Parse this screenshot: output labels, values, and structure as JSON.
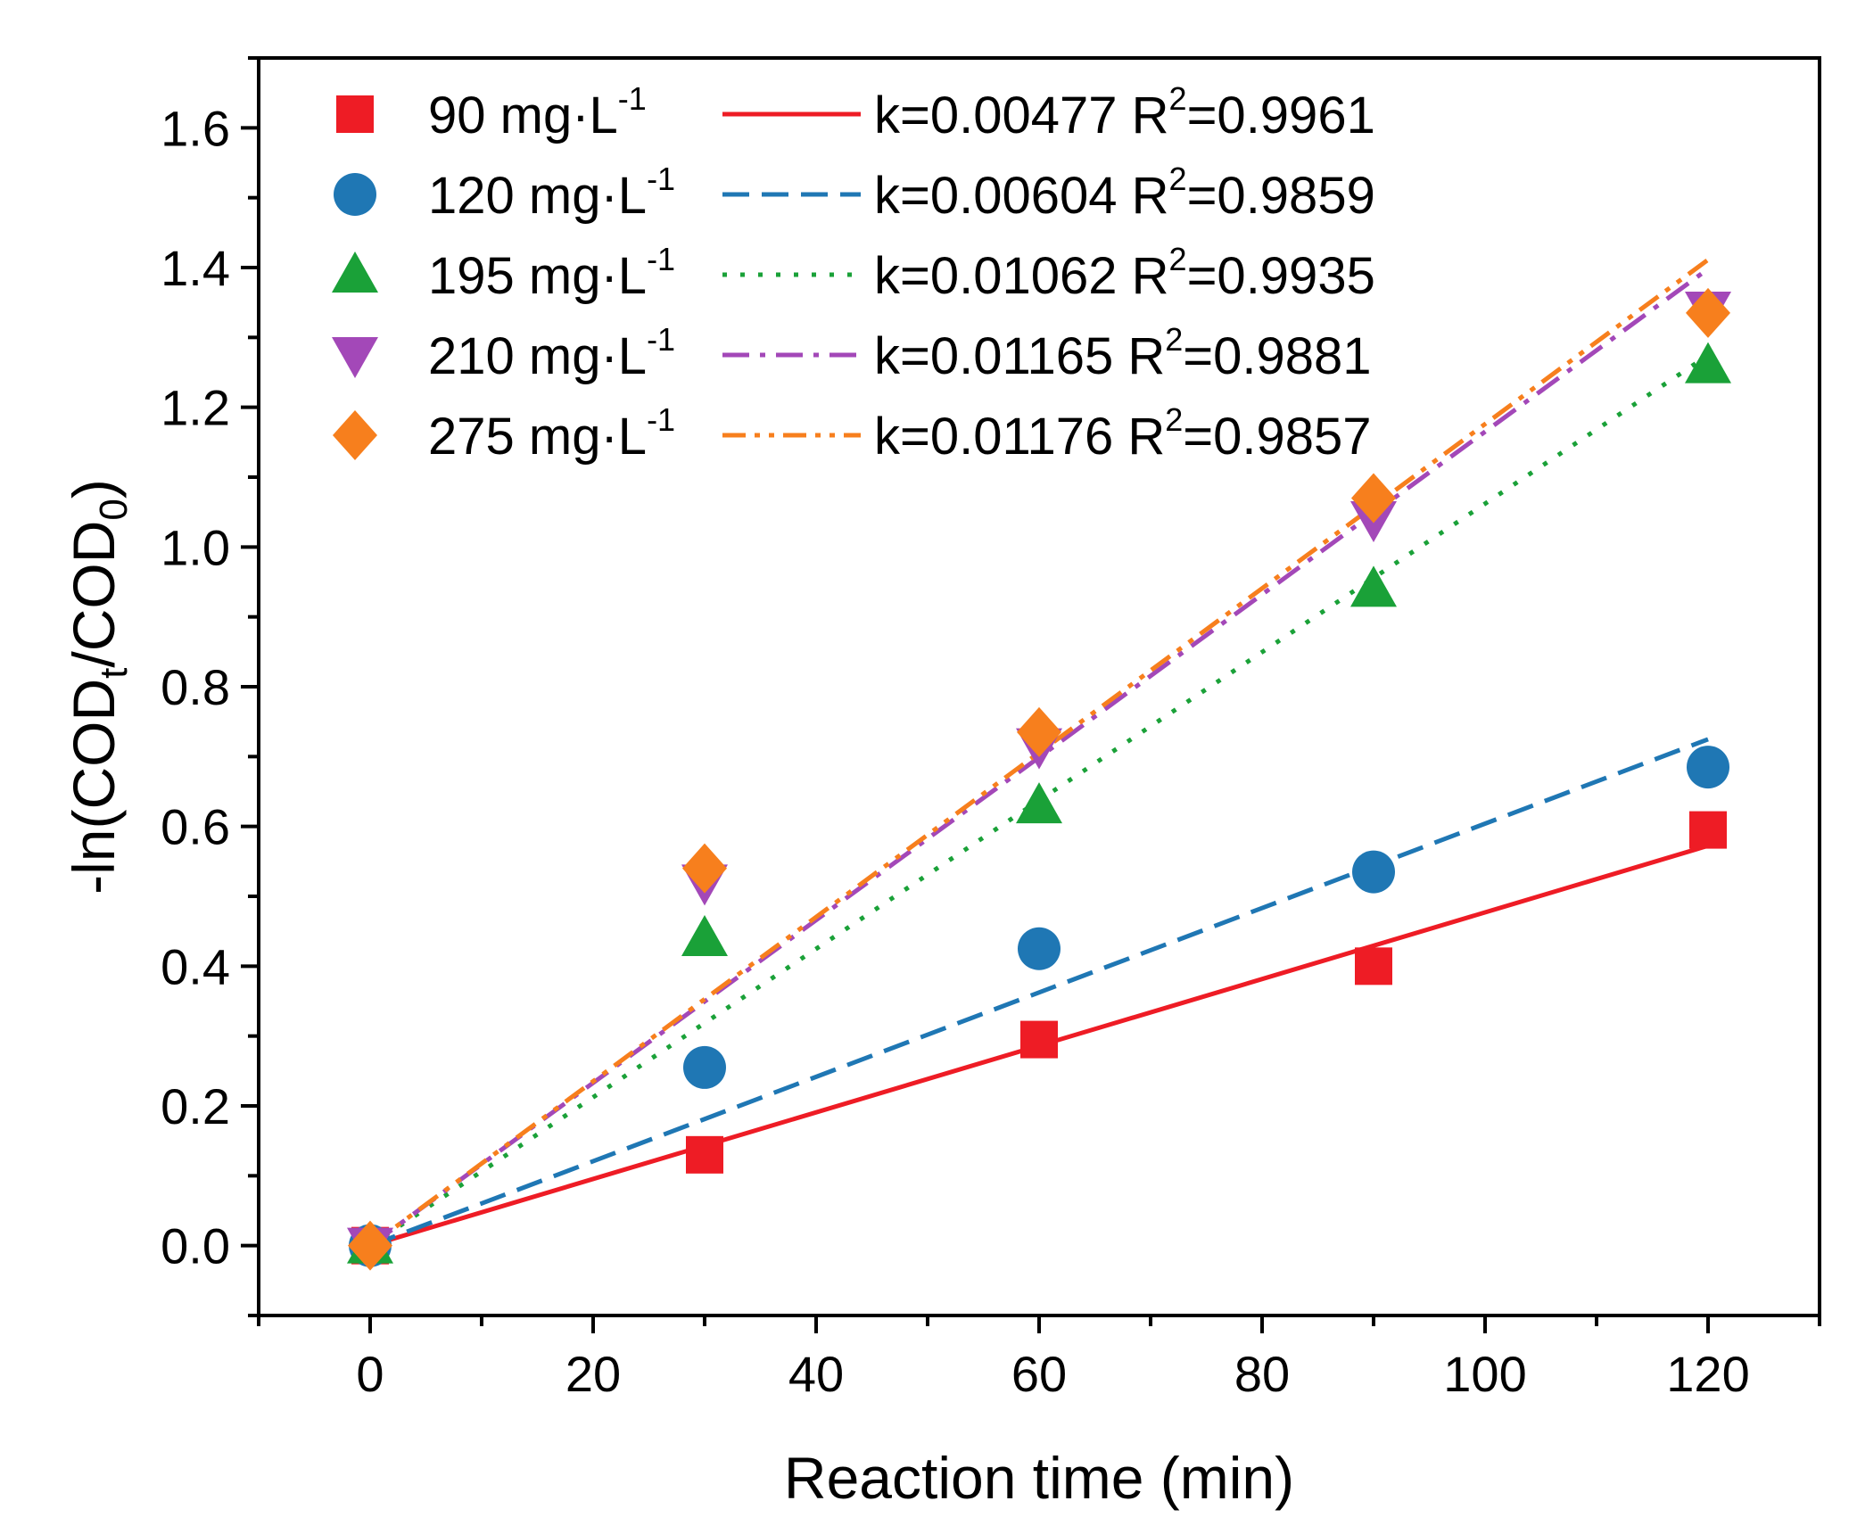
{
  "chart_data": {
    "type": "scatter",
    "title": "",
    "xlabel": "Reaction time (min)",
    "ylabel": {
      "prefix": "-ln(COD",
      "sub1": "t",
      "middle": "/COD",
      "sub2": "0",
      "suffix": ")"
    },
    "xlim": [
      -10,
      130
    ],
    "ylim": [
      -0.1,
      1.7
    ],
    "xticks": [
      0,
      20,
      40,
      60,
      80,
      100,
      120
    ],
    "xtick_labels": [
      "0",
      "20",
      "40",
      "60",
      "80",
      "100",
      "120"
    ],
    "yticks": [
      0.0,
      0.2,
      0.4,
      0.6,
      0.8,
      1.0,
      1.2,
      1.4,
      1.6
    ],
    "ytick_labels": [
      "0.0",
      "0.2",
      "0.4",
      "0.6",
      "0.8",
      "1.0",
      "1.2",
      "1.4",
      "1.6"
    ],
    "grid": false,
    "legend_position": "top-left",
    "legend_unit": "mg·L",
    "legend_unit_exp": "-1",
    "x": [
      0,
      30,
      60,
      90,
      120
    ],
    "series": [
      {
        "name": "90",
        "marker": "square",
        "color": "#ee1c25",
        "line_style": "solid",
        "values": [
          0.0,
          0.13,
          0.295,
          0.4,
          0.595
        ],
        "k": 0.00477,
        "fit_label": "k=0.00477 R",
        "r2": "=0.9961"
      },
      {
        "name": "120",
        "marker": "circle",
        "color": "#1f77b4",
        "line_style": "dash",
        "values": [
          0.0,
          0.255,
          0.425,
          0.535,
          0.685
        ],
        "k": 0.00604,
        "fit_label": "k=0.00604 R",
        "r2": "=0.9859"
      },
      {
        "name": "195",
        "marker": "triangle-up",
        "color": "#1aa138",
        "line_style": "dot",
        "values": [
          0.0,
          0.44,
          0.63,
          0.94,
          1.26
        ],
        "k": 0.01062,
        "fit_label": "k=0.01062 R",
        "r2": "=0.9935"
      },
      {
        "name": "210",
        "marker": "triangle-down",
        "color": "#a348b8",
        "line_style": "dashdot",
        "values": [
          0.0,
          0.52,
          0.715,
          1.04,
          1.34
        ],
        "k": 0.01165,
        "fit_label": "k=0.01165 R",
        "r2": "=0.9881"
      },
      {
        "name": "275",
        "marker": "diamond",
        "color": "#f77f1d",
        "line_style": "dashdotdot",
        "values": [
          0.0,
          0.54,
          0.735,
          1.07,
          1.335
        ],
        "k": 0.01176,
        "fit_label": "k=0.01176 R",
        "r2": "=0.9857"
      }
    ]
  }
}
